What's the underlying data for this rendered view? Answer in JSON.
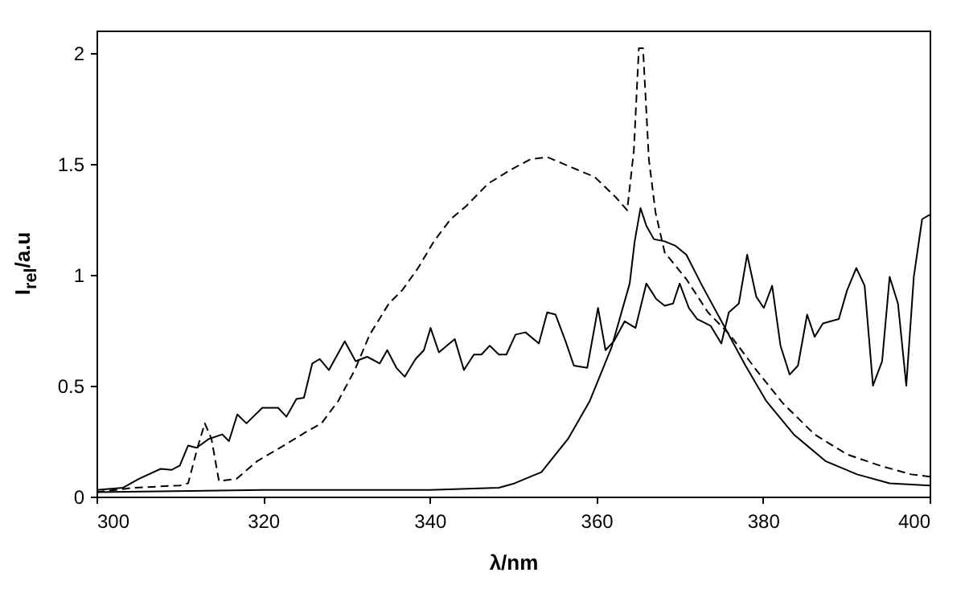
{
  "chart_data": {
    "type": "line",
    "xlabel": "λ/nm",
    "ylabel": "I$_{rel}$/a.u",
    "xlim": [
      300,
      400
    ],
    "xticks": [
      300,
      320,
      340,
      360,
      380,
      400
    ],
    "ylim": [
      0,
      2.1
    ],
    "yticks": [
      0,
      0.5,
      1,
      1.5,
      2
    ],
    "grid": false,
    "series": [
      {
        "color": "#000000",
        "line_style": "solid",
        "x": [
          300,
          303.2,
          305.1,
          307.7,
          309,
          310,
          311,
          312,
          313.5,
          315.1,
          315.9,
          316.9,
          318,
          319.9,
          321.8,
          322.8,
          324,
          324.9,
          325.9,
          326.8,
          327.9,
          329.8,
          331.1,
          332.5,
          334,
          334.9,
          336,
          337,
          338.3,
          339.3,
          340.1,
          341.1,
          343,
          344.1,
          345.3,
          346.2,
          347.2,
          348.3,
          349.2,
          350.3,
          351.5,
          353.1,
          354.1,
          355.1,
          356.3,
          357.3,
          358.9,
          360.2,
          361.1,
          362.1,
          363.4,
          364.7,
          366,
          367.2,
          368.2,
          369.2,
          370,
          371.1,
          372.1,
          373.7,
          375,
          375.9,
          377.1,
          378.1,
          379.2,
          380.1,
          381.1,
          382.1,
          383.2,
          384.2,
          385.3,
          386.2,
          387.2,
          389.1,
          390.1,
          391.2,
          392.2,
          393.2,
          394.3,
          395.2,
          396.2,
          397.2,
          398.1,
          399.1,
          400
        ],
        "values": [
          0.03,
          0.04,
          0.08,
          0.125,
          0.12,
          0.14,
          0.23,
          0.22,
          0.26,
          0.28,
          0.25,
          0.37,
          0.33,
          0.4,
          0.4,
          0.36,
          0.44,
          0.445,
          0.6,
          0.62,
          0.57,
          0.7,
          0.61,
          0.63,
          0.6,
          0.66,
          0.58,
          0.54,
          0.62,
          0.66,
          0.76,
          0.65,
          0.71,
          0.57,
          0.64,
          0.64,
          0.68,
          0.64,
          0.64,
          0.73,
          0.74,
          0.69,
          0.83,
          0.82,
          0.7,
          0.59,
          0.58,
          0.85,
          0.66,
          0.7,
          0.79,
          0.76,
          0.96,
          0.89,
          0.86,
          0.87,
          0.96,
          0.85,
          0.8,
          0.77,
          0.69,
          0.83,
          0.87,
          1.09,
          0.9,
          0.85,
          0.95,
          0.68,
          0.55,
          0.59,
          0.82,
          0.72,
          0.78,
          0.8,
          0.93,
          1.03,
          0.95,
          0.5,
          0.61,
          0.99,
          0.87,
          0.5,
          0.99,
          1.25,
          1.27
        ]
      },
      {
        "color": "#000000",
        "line_style": "dashed",
        "x": [
          300,
          304.5,
          310,
          311,
          312.2,
          313,
          313.8,
          314.7,
          316.8,
          319.3,
          322.5,
          325.1,
          327,
          329,
          331,
          332.8,
          335.1,
          336.7,
          338.6,
          340.5,
          342.5,
          344.4,
          347,
          349.6,
          352.1,
          354.1,
          356.6,
          359.8,
          362.3,
          363.7,
          364.5,
          365.1,
          365.6,
          366.3,
          367.1,
          368.2,
          370.8,
          373.4,
          376,
          379.2,
          382.4,
          386.2,
          390.1,
          394,
          397.8,
          400
        ],
        "values": [
          0.02,
          0.04,
          0.05,
          0.06,
          0.23,
          0.33,
          0.26,
          0.07,
          0.08,
          0.16,
          0.23,
          0.29,
          0.33,
          0.43,
          0.57,
          0.73,
          0.87,
          0.93,
          1.03,
          1.15,
          1.25,
          1.31,
          1.41,
          1.47,
          1.52,
          1.53,
          1.49,
          1.44,
          1.35,
          1.29,
          1.56,
          2.02,
          2.02,
          1.52,
          1.28,
          1.1,
          0.98,
          0.83,
          0.73,
          0.57,
          0.42,
          0.28,
          0.19,
          0.14,
          0.1,
          0.09
        ]
      },
      {
        "color": "#000000",
        "line_style": "solid",
        "x": [
          300,
          320,
          340,
          348.3,
          350.2,
          352.1,
          353.4,
          356.6,
          359.2,
          361.8,
          364,
          364.6,
          365.3,
          366,
          366.9,
          368.2,
          369.5,
          370.8,
          372.7,
          375.3,
          377.9,
          380.4,
          383.7,
          387.5,
          391.3,
          395.2,
          400
        ],
        "values": [
          0.02,
          0.03,
          0.03,
          0.04,
          0.06,
          0.09,
          0.11,
          0.26,
          0.43,
          0.67,
          0.96,
          1.15,
          1.3,
          1.22,
          1.16,
          1.15,
          1.13,
          1.09,
          0.95,
          0.77,
          0.59,
          0.43,
          0.28,
          0.16,
          0.1,
          0.06,
          0.05
        ]
      }
    ]
  }
}
